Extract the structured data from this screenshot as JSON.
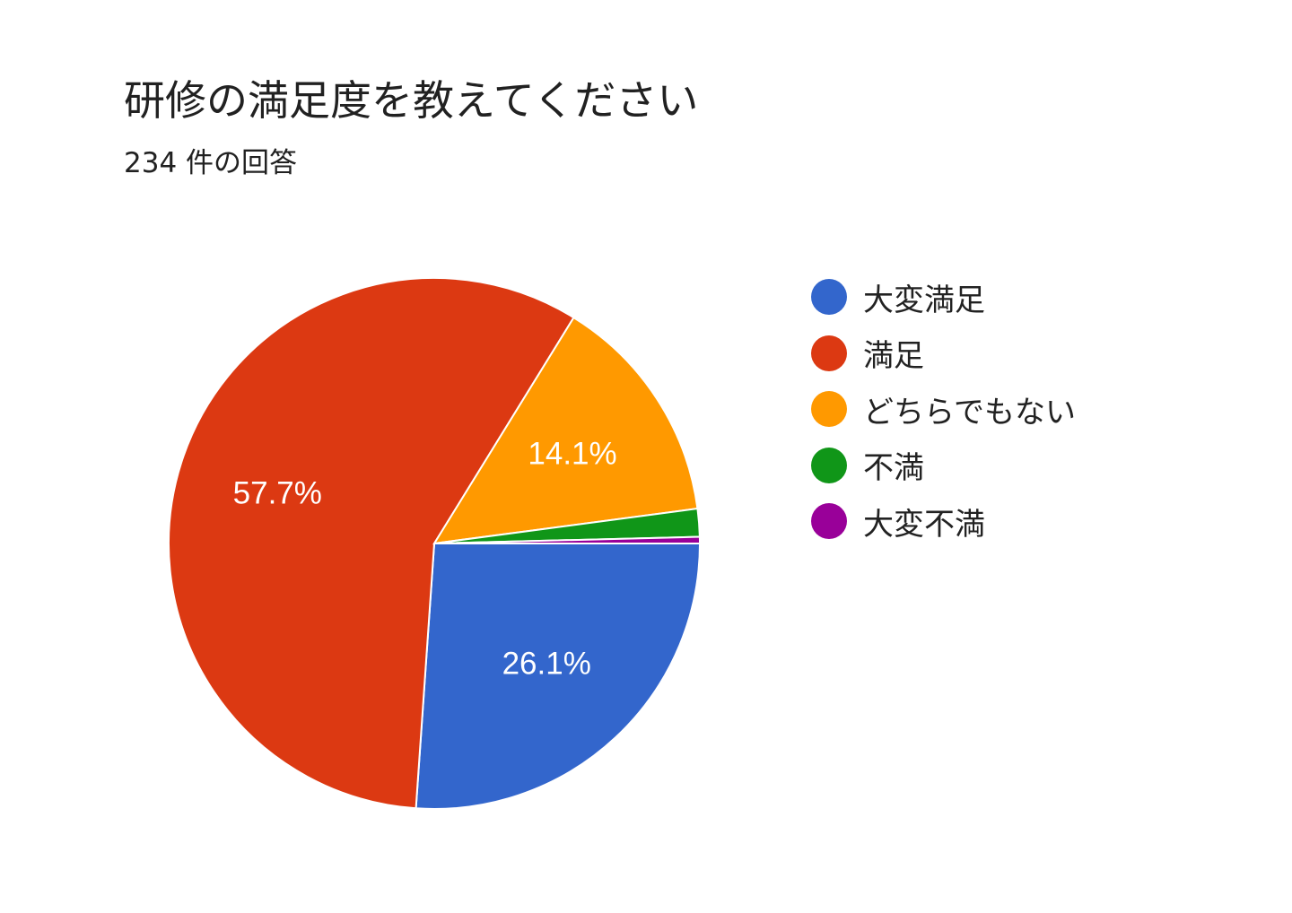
{
  "chart_data": {
    "type": "pie",
    "title": "研修の満足度を教えてください",
    "response_count": "234",
    "response_suffix": "件の回答",
    "categories": [
      "大変満足",
      "満足",
      "どちらでもない",
      "不満",
      "大変不満"
    ],
    "values": [
      26.1,
      57.7,
      14.1,
      1.7,
      0.4
    ],
    "value_labels": [
      "26.1%",
      "57.7%",
      "14.1%",
      "",
      ""
    ],
    "colors": [
      "#3366cc",
      "#dc3912",
      "#ff9900",
      "#109618",
      "#990099"
    ],
    "legend_position": "right"
  }
}
